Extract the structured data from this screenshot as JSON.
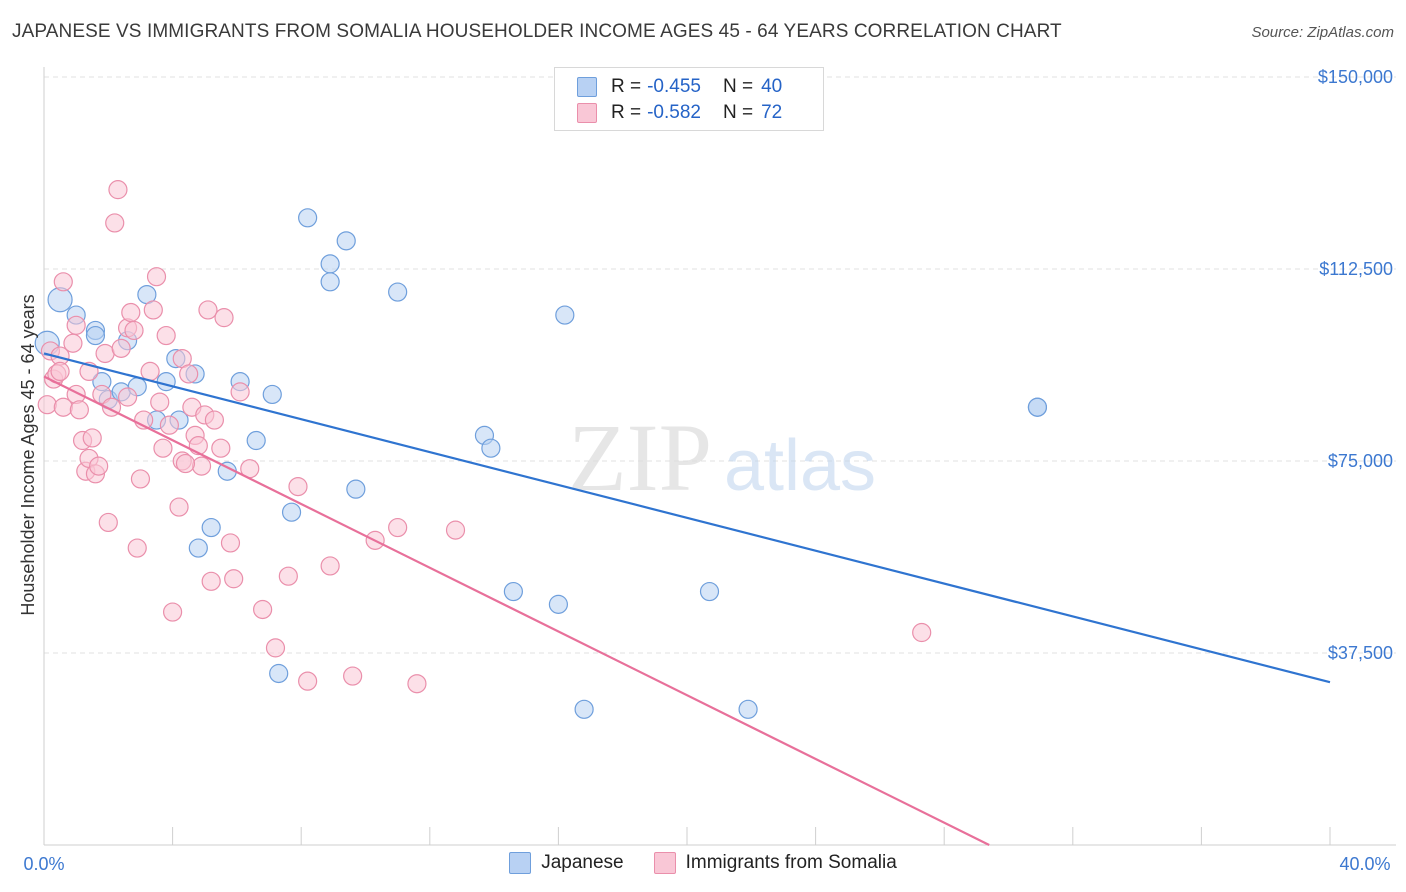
{
  "title": "JAPANESE VS IMMIGRANTS FROM SOMALIA HOUSEHOLDER INCOME AGES 45 - 64 YEARS CORRELATION CHART",
  "source": "Source: ZipAtlas.com",
  "watermark": {
    "zip": "ZIP",
    "atlas": "atlas"
  },
  "legend": {
    "rows": [
      {
        "r_label": "R =",
        "r_value": "-0.455",
        "n_label": "N =",
        "n_value": "40",
        "fill": "#b8d1f3",
        "stroke": "#6f9fdc"
      },
      {
        "r_label": "R =",
        "r_value": "-0.582",
        "n_label": "N =",
        "n_value": "72",
        "fill": "#f9c7d6",
        "stroke": "#ea8fab"
      }
    ]
  },
  "colors": {
    "blue_line": "#2f74d0",
    "pink_line": "#e8709a",
    "blue_text": "#3c78d0",
    "grid": "#e2e2e2"
  },
  "chart_data": {
    "type": "scatter",
    "ylabel": "Householder Income Ages 45 - 64 years",
    "xlim": [
      0.0,
      40.0
    ],
    "ylim": [
      0,
      150000
    ],
    "x_tick_labels": [
      "0.0%",
      "40.0%"
    ],
    "y_ticks": [
      {
        "value": 150000,
        "label": "$150,000"
      },
      {
        "value": 112500,
        "label": "$112,500"
      },
      {
        "value": 75000,
        "label": "$75,000"
      },
      {
        "value": 37500,
        "label": "$37,500"
      }
    ],
    "grid": "horizontal dashed",
    "series": [
      {
        "name": "Japanese",
        "fill": "#b8d1f3",
        "stroke": "#6f9fdc",
        "trend": {
          "x": [
            0.0,
            40.0
          ],
          "y": [
            96000,
            31800
          ]
        },
        "points": [
          [
            0.1,
            98000
          ],
          [
            0.5,
            106500
          ],
          [
            1.0,
            103500
          ],
          [
            1.6,
            100500
          ],
          [
            1.6,
            99500
          ],
          [
            1.8,
            90500
          ],
          [
            2.0,
            87000
          ],
          [
            2.4,
            88500
          ],
          [
            2.6,
            98500
          ],
          [
            2.9,
            89500
          ],
          [
            3.2,
            107500
          ],
          [
            3.5,
            83000
          ],
          [
            3.8,
            90500
          ],
          [
            4.1,
            95000
          ],
          [
            4.2,
            83000
          ],
          [
            4.7,
            92000
          ],
          [
            4.8,
            58000
          ],
          [
            5.2,
            62000
          ],
          [
            5.7,
            73000
          ],
          [
            6.1,
            90500
          ],
          [
            6.6,
            79000
          ],
          [
            7.1,
            88000
          ],
          [
            7.3,
            33500
          ],
          [
            7.7,
            65000
          ],
          [
            8.2,
            122500
          ],
          [
            8.9,
            110000
          ],
          [
            8.9,
            113500
          ],
          [
            9.4,
            118000
          ],
          [
            9.7,
            69500
          ],
          [
            11.0,
            108000
          ],
          [
            13.7,
            80000
          ],
          [
            13.9,
            77500
          ],
          [
            14.6,
            49500
          ],
          [
            16.0,
            47000
          ],
          [
            16.2,
            103500
          ],
          [
            16.8,
            26500
          ],
          [
            20.7,
            49500
          ],
          [
            21.9,
            26500
          ],
          [
            30.9,
            85500
          ],
          [
            30.9,
            85500
          ]
        ]
      },
      {
        "name": "Immigrants from Somalia",
        "fill": "#f9c7d6",
        "stroke": "#ea8fab",
        "trend": {
          "x": [
            0.0,
            29.4
          ],
          "y": [
            91500,
            0
          ]
        },
        "points": [
          [
            0.1,
            86000
          ],
          [
            0.2,
            96500
          ],
          [
            0.3,
            91000
          ],
          [
            0.4,
            92000
          ],
          [
            0.5,
            95500
          ],
          [
            0.5,
            92500
          ],
          [
            0.6,
            110000
          ],
          [
            0.6,
            85500
          ],
          [
            0.9,
            98000
          ],
          [
            1.0,
            101500
          ],
          [
            1.0,
            88000
          ],
          [
            1.1,
            85000
          ],
          [
            1.2,
            79000
          ],
          [
            1.3,
            73000
          ],
          [
            1.4,
            75500
          ],
          [
            1.5,
            79500
          ],
          [
            1.6,
            72500
          ],
          [
            1.7,
            74000
          ],
          [
            1.8,
            88000
          ],
          [
            1.9,
            96000
          ],
          [
            2.0,
            63000
          ],
          [
            2.1,
            85500
          ],
          [
            2.2,
            121500
          ],
          [
            2.3,
            128000
          ],
          [
            2.4,
            97000
          ],
          [
            2.6,
            101000
          ],
          [
            2.6,
            87500
          ],
          [
            2.7,
            104000
          ],
          [
            2.8,
            100500
          ],
          [
            2.9,
            58000
          ],
          [
            3.0,
            71500
          ],
          [
            3.1,
            83000
          ],
          [
            3.3,
            92500
          ],
          [
            3.4,
            104500
          ],
          [
            3.5,
            111000
          ],
          [
            3.6,
            86500
          ],
          [
            3.7,
            77500
          ],
          [
            3.8,
            99500
          ],
          [
            3.9,
            82000
          ],
          [
            4.0,
            45500
          ],
          [
            4.2,
            66000
          ],
          [
            4.3,
            95000
          ],
          [
            4.3,
            75000
          ],
          [
            4.5,
            92000
          ],
          [
            4.6,
            85500
          ],
          [
            4.7,
            80000
          ],
          [
            4.8,
            78000
          ],
          [
            4.9,
            74000
          ],
          [
            5.0,
            84000
          ],
          [
            5.1,
            104500
          ],
          [
            5.2,
            51500
          ],
          [
            5.3,
            83000
          ],
          [
            5.5,
            77500
          ],
          [
            5.6,
            103000
          ],
          [
            5.8,
            59000
          ],
          [
            5.9,
            52000
          ],
          [
            6.1,
            88500
          ],
          [
            6.4,
            73500
          ],
          [
            6.8,
            46000
          ],
          [
            7.2,
            38500
          ],
          [
            7.6,
            52500
          ],
          [
            7.9,
            70000
          ],
          [
            8.2,
            32000
          ],
          [
            8.9,
            54500
          ],
          [
            9.6,
            33000
          ],
          [
            10.3,
            59500
          ],
          [
            11.0,
            62000
          ],
          [
            11.6,
            31500
          ],
          [
            12.8,
            61500
          ],
          [
            27.3,
            41500
          ],
          [
            4.4,
            74500
          ],
          [
            1.4,
            92500
          ]
        ]
      }
    ]
  },
  "bottom_legend": [
    "Japanese",
    "Immigrants from Somalia"
  ]
}
